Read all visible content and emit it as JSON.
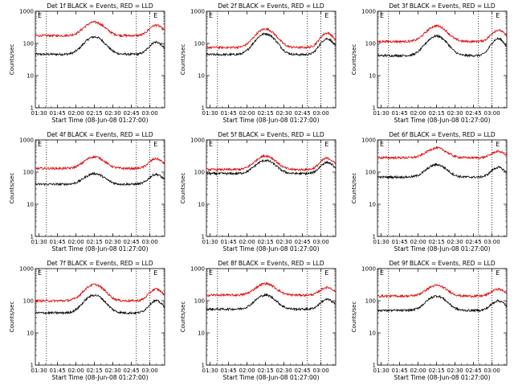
{
  "colors": {
    "events": "#000000",
    "lld": "#e00000",
    "axes": "#000000"
  },
  "chart_data": [
    {
      "type": "line",
      "title": "Det 1f BLACK = Events, RED = LLD",
      "xlabel": "Start Time (08-Jun-08 01:27:00)",
      "ylabel": "Counts/sec",
      "yscale": "log",
      "ylim": [
        1,
        1000
      ],
      "xticks": [
        "01:30",
        "01:45",
        "02:00",
        "02:15",
        "02:30",
        "02:45",
        "03:00"
      ],
      "yticks": [
        "1",
        "10",
        "100",
        "1000"
      ],
      "corner_mark": "E",
      "series": [
        {
          "color": "black",
          "baseline": 46,
          "peak": 160,
          "peak2": 110
        },
        {
          "color": "red",
          "baseline": 175,
          "peak": 460,
          "peak2": 370
        }
      ]
    },
    {
      "type": "line",
      "title": "Det 2f BLACK = Events, RED = LLD",
      "xlabel": "Start Time (08-Jun-08 01:27:00)",
      "ylabel": "Counts/sec",
      "yscale": "log",
      "ylim": [
        1,
        1000
      ],
      "xticks": [
        "01:30",
        "01:45",
        "02:00",
        "02:15",
        "02:30",
        "02:45",
        "03:00"
      ],
      "yticks": [
        "1",
        "10",
        "100",
        "1000"
      ],
      "corner_mark": "E",
      "series": [
        {
          "color": "black",
          "baseline": 45,
          "peak": 200,
          "peak2": 140
        },
        {
          "color": "red",
          "baseline": 75,
          "peak": 280,
          "peak2": 210
        }
      ]
    },
    {
      "type": "line",
      "title": "Det 3f BLACK = Events, RED = LLD",
      "xlabel": "Start Time (08-Jun-08 01:27:00)",
      "ylabel": "Counts/sec",
      "yscale": "log",
      "ylim": [
        1,
        1000
      ],
      "xticks": [
        "01:30",
        "01:45",
        "02:00",
        "02:15",
        "02:30",
        "02:45",
        "03:00"
      ],
      "yticks": [
        "1",
        "10",
        "100",
        "1000"
      ],
      "corner_mark": "E",
      "series": [
        {
          "color": "black",
          "baseline": 42,
          "peak": 170,
          "peak2": 140
        },
        {
          "color": "red",
          "baseline": 115,
          "peak": 350,
          "peak2": 260
        }
      ]
    },
    {
      "type": "line",
      "title": "Det 4f BLACK = Events, RED = LLD",
      "xlabel": "Start Time (08-Jun-08 01:27:00)",
      "ylabel": "Counts/sec",
      "yscale": "log",
      "ylim": [
        1,
        1000
      ],
      "xticks": [
        "01:30",
        "01:45",
        "02:00",
        "02:15",
        "02:30",
        "02:45",
        "03:00"
      ],
      "yticks": [
        "1",
        "10",
        "100",
        "1000"
      ],
      "corner_mark": "E",
      "series": [
        {
          "color": "black",
          "baseline": 42,
          "peak": 90,
          "peak2": 85
        },
        {
          "color": "red",
          "baseline": 130,
          "peak": 300,
          "peak2": 260
        }
      ]
    },
    {
      "type": "line",
      "title": "Det 5f BLACK = Events, RED = LLD",
      "xlabel": "Start Time (08-Jun-08 01:27:00)",
      "ylabel": "Counts/sec",
      "yscale": "log",
      "ylim": [
        1,
        1000
      ],
      "xticks": [
        "01:30",
        "01:45",
        "02:00",
        "02:15",
        "02:30",
        "02:45",
        "03:00"
      ],
      "yticks": [
        "1",
        "10",
        "100",
        "1000"
      ],
      "corner_mark": "E",
      "series": [
        {
          "color": "black",
          "baseline": 90,
          "peak": 230,
          "peak2": 200
        },
        {
          "color": "red",
          "baseline": 120,
          "peak": 320,
          "peak2": 270
        }
      ]
    },
    {
      "type": "line",
      "title": "Det 6f BLACK = Events, RED = LLD",
      "xlabel": "Start Time (08-Jun-08 01:27:00)",
      "ylabel": "Counts/sec",
      "yscale": "log",
      "ylim": [
        1,
        1000
      ],
      "xticks": [
        "01:30",
        "01:45",
        "02:00",
        "02:15",
        "02:30",
        "02:45",
        "03:00"
      ],
      "yticks": [
        "1",
        "10",
        "100",
        "1000"
      ],
      "corner_mark": "E",
      "series": [
        {
          "color": "black",
          "baseline": 70,
          "peak": 170,
          "peak2": 140
        },
        {
          "color": "red",
          "baseline": 280,
          "peak": 560,
          "peak2": 440
        }
      ]
    },
    {
      "type": "line",
      "title": "Det 7f BLACK = Events, RED = LLD",
      "xlabel": "Start Time (08-Jun-08 01:27:00)",
      "ylabel": "Counts/sec",
      "yscale": "log",
      "ylim": [
        1,
        1000
      ],
      "xticks": [
        "01:30",
        "01:45",
        "02:00",
        "02:15",
        "02:30",
        "02:45",
        "03:00"
      ],
      "yticks": [
        "1",
        "10",
        "100",
        "1000"
      ],
      "corner_mark": "E",
      "series": [
        {
          "color": "black",
          "baseline": 42,
          "peak": 150,
          "peak2": 100
        },
        {
          "color": "red",
          "baseline": 100,
          "peak": 320,
          "peak2": 230
        }
      ]
    },
    {
      "type": "line",
      "title": "Det 8f BLACK = Events, RED = LLD",
      "xlabel": "Start Time (08-Jun-08 01:27:00)",
      "ylabel": "Counts/sec",
      "yscale": "log",
      "ylim": [
        1,
        1000
      ],
      "xticks": [
        "01:30",
        "01:45",
        "02:00",
        "02:15",
        "02:30",
        "02:45",
        "03:00"
      ],
      "yticks": [
        "1",
        "10",
        "100",
        "1000"
      ],
      "corner_mark": "E",
      "series": [
        {
          "color": "black",
          "baseline": 55,
          "peak": 150,
          "peak2": 110
        },
        {
          "color": "red",
          "baseline": 150,
          "peak": 340,
          "peak2": 260
        }
      ]
    },
    {
      "type": "line",
      "title": "Det 9f BLACK = Events, RED = LLD",
      "xlabel": "Start Time (08-Jun-08 01:27:00)",
      "ylabel": "Counts/sec",
      "yscale": "log",
      "ylim": [
        1,
        1000
      ],
      "xticks": [
        "01:30",
        "01:45",
        "02:00",
        "02:15",
        "02:30",
        "02:45",
        "03:00"
      ],
      "yticks": [
        "1",
        "10",
        "100",
        "1000"
      ],
      "corner_mark": "E",
      "series": [
        {
          "color": "black",
          "baseline": 50,
          "peak": 140,
          "peak2": 100
        },
        {
          "color": "red",
          "baseline": 140,
          "peak": 300,
          "peak2": 230
        }
      ]
    }
  ]
}
